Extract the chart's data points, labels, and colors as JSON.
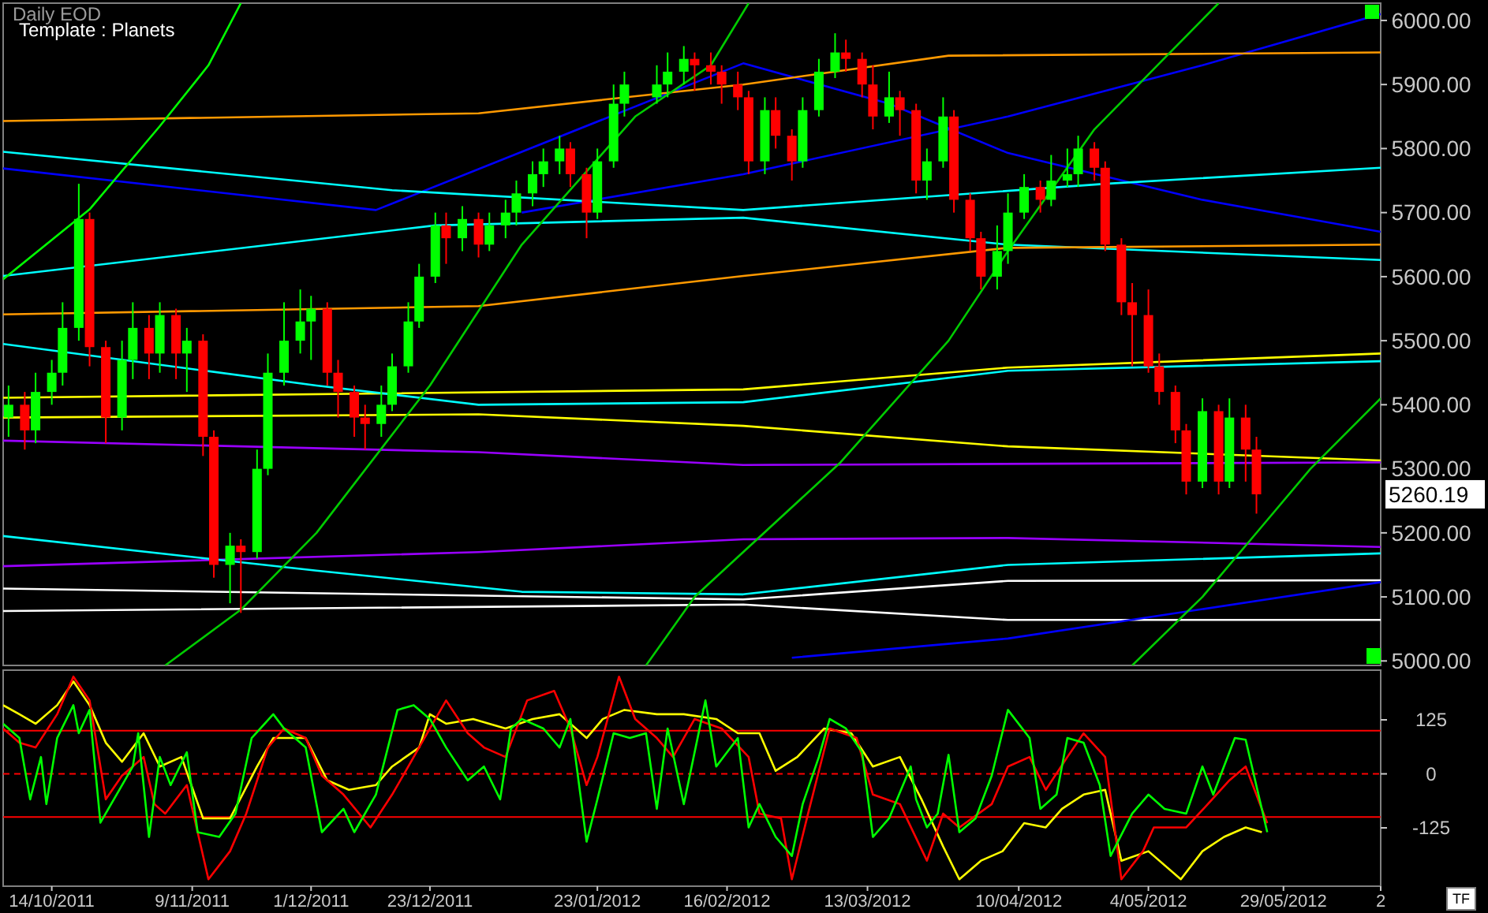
{
  "chart_data": [
    {
      "type": "candlestick",
      "title": "Daily EOD",
      "subtitle": "Template : Planets",
      "xlim": [
        "2011-10-05",
        "2012-06-16"
      ],
      "ylim": [
        4993,
        6027
      ],
      "tick_labels": "y",
      "yticks": [
        {
          "value": 5000,
          "label": "5000.00"
        },
        {
          "value": 5100,
          "label": "5100.00"
        },
        {
          "value": 5200,
          "label": "5200.00"
        },
        {
          "value": 5300,
          "label": "5300.00"
        },
        {
          "value": 5400,
          "label": "5400.00"
        },
        {
          "value": 5500,
          "label": "5500.00"
        },
        {
          "value": 5600,
          "label": "5600.00"
        },
        {
          "value": 5700,
          "label": "5700.00"
        },
        {
          "value": 5800,
          "label": "5800.00"
        },
        {
          "value": 5900,
          "label": "5900.00"
        },
        {
          "value": 6000,
          "label": "6000.00"
        }
      ],
      "annotations": [
        "5260.19"
      ],
      "series": [
        {
          "type": "line",
          "color": "#00ffff",
          "x": [
            "2011-10-05",
            "2011-12-24",
            "2012-02-19",
            "2012-04-08",
            "2012-06-16"
          ],
          "values": [
            5601,
            5680,
            5692,
            5650,
            5626
          ]
        },
        {
          "type": "line",
          "color": "#0000ff",
          "x": [
            "2012-01-09",
            "2012-02-19",
            "2012-04-08",
            "2012-05-14",
            "2012-06-16"
          ],
          "values": [
            5700,
            5760,
            5850,
            5930,
            6010
          ]
        },
        {
          "type": "line",
          "color": "#0000ff",
          "x": [
            "2011-10-05",
            "2011-12-13",
            "2012-02-19",
            "2012-03-17",
            "2012-04-08",
            "2012-05-14",
            "2012-06-16"
          ],
          "values": [
            5769,
            5704,
            5933,
            5870,
            5793,
            5720,
            5670
          ]
        },
        {
          "type": "line",
          "color": "#00ffff",
          "x": [
            "2011-10-05",
            "2011-12-16",
            "2012-02-19",
            "2012-04-26",
            "2012-06-16"
          ],
          "values": [
            5795,
            5735,
            5704,
            5745,
            5770
          ]
        },
        {
          "type": "line",
          "color": "#ff9900",
          "x": [
            "2011-10-05",
            "2012-01-01",
            "2012-02-19",
            "2012-03-28",
            "2012-06-16"
          ],
          "values": [
            5843,
            5855,
            5900,
            5945,
            5950
          ]
        },
        {
          "type": "line",
          "color": "#ff9900",
          "x": [
            "2011-10-05",
            "2012-01-01",
            "2012-02-19",
            "2012-04-08",
            "2012-06-16"
          ],
          "values": [
            5541,
            5554,
            5601,
            5645,
            5650
          ]
        },
        {
          "type": "line",
          "color": "#ffff00",
          "x": [
            "2011-10-05",
            "2012-02-19",
            "2012-04-08",
            "2012-06-16"
          ],
          "values": [
            5411,
            5424,
            5458,
            5480
          ]
        },
        {
          "type": "line",
          "color": "#00ffff",
          "x": [
            "2011-10-05",
            "2011-12-02",
            "2012-01-01",
            "2012-02-19",
            "2012-04-08",
            "2012-06-16"
          ],
          "values": [
            5495,
            5430,
            5400,
            5404,
            5453,
            5468
          ]
        },
        {
          "type": "line",
          "color": "#ffff00",
          "x": [
            "2011-10-05",
            "2012-01-01",
            "2012-02-19",
            "2012-04-08",
            "2012-06-16"
          ],
          "values": [
            5380,
            5385,
            5367,
            5335,
            5313
          ]
        },
        {
          "type": "line",
          "color": "#9900ff",
          "x": [
            "2011-10-05",
            "2012-01-01",
            "2012-02-19",
            "2012-06-16"
          ],
          "values": [
            5344,
            5326,
            5306,
            5310
          ]
        },
        {
          "type": "line",
          "color": "#9900ff",
          "x": [
            "2011-10-05",
            "2012-01-01",
            "2012-02-19",
            "2012-04-08",
            "2012-06-16"
          ],
          "values": [
            5148,
            5170,
            5190,
            5192,
            5178
          ]
        },
        {
          "type": "line",
          "color": "#00ffff",
          "x": [
            "2011-10-05",
            "2011-12-02",
            "2012-01-09",
            "2012-02-19",
            "2012-04-08",
            "2012-06-16"
          ],
          "values": [
            5195,
            5141,
            5108,
            5104,
            5150,
            5168
          ]
        },
        {
          "type": "line",
          "color": "#ffffff",
          "x": [
            "2011-10-05",
            "2012-02-19",
            "2012-04-08",
            "2012-06-16"
          ],
          "values": [
            5113,
            5096,
            5125,
            5126
          ]
        },
        {
          "type": "line",
          "color": "#ffffff",
          "x": [
            "2011-10-05",
            "2012-02-19",
            "2012-04-08",
            "2012-06-16"
          ],
          "values": [
            5078,
            5088,
            5064,
            5064
          ]
        },
        {
          "type": "line",
          "color": "#0000ff",
          "x": [
            "2012-02-28",
            "2012-04-08",
            "2012-06-16"
          ],
          "values": [
            5005,
            5035,
            5123
          ]
        },
        {
          "type": "line",
          "color": "#00ff00",
          "x": [
            "2011-10-05",
            "2011-10-21",
            "2011-11-03",
            "2011-11-12",
            "2011-11-18"
          ],
          "values": [
            5596,
            5705,
            5835,
            5930,
            6027
          ]
        },
        {
          "type": "line",
          "color": "#00cc00",
          "x": [
            "2011-11-04",
            "2011-11-18",
            "2011-12-02",
            "2011-12-23",
            "2012-01-09",
            "2012-01-30",
            "2012-02-13",
            "2012-02-20"
          ],
          "values": [
            4993,
            5080,
            5200,
            5430,
            5650,
            5850,
            5930,
            6027
          ]
        },
        {
          "type": "line",
          "color": "#00cc00",
          "x": [
            "2012-02-01",
            "2012-02-10",
            "2012-03-08",
            "2012-03-28",
            "2012-04-08",
            "2012-04-24",
            "2012-05-08",
            "2012-05-17"
          ],
          "values": [
            4993,
            5100,
            5310,
            5500,
            5640,
            5830,
            5950,
            6027
          ]
        },
        {
          "type": "line",
          "color": "#00cc00",
          "x": [
            "2012-05-01",
            "2012-05-14",
            "2012-05-25",
            "2012-06-03",
            "2012-06-16"
          ],
          "values": [
            4993,
            5100,
            5210,
            5300,
            5410
          ]
        },
        {
          "color": "#00ff00",
          "x": [
            "2011-10-06",
            "2011-10-11",
            "2011-10-14",
            "2011-10-16",
            "2011-10-19",
            "2011-10-27",
            "2011-10-29",
            "2011-11-03",
            "2011-11-08",
            "2011-11-16",
            "2011-11-21",
            "2011-11-23",
            "2011-11-26",
            "2011-11-29",
            "2011-12-01",
            "2011-12-14",
            "2011-12-16",
            "2011-12-19",
            "2011-12-21",
            "2011-12-24",
            "2011-12-29",
            "2012-01-03",
            "2012-01-06",
            "2012-01-08",
            "2012-01-11",
            "2012-01-13",
            "2012-01-16",
            "2012-01-23",
            "2012-01-26",
            "2012-01-28",
            "2012-02-03",
            "2012-02-05",
            "2012-02-08",
            "2012-02-23",
            "2012-03-01",
            "2012-03-04",
            "2012-03-07",
            "2012-03-17",
            "2012-03-24",
            "2012-03-27",
            "2012-04-06",
            "2012-04-08",
            "2012-04-11",
            "2012-04-16",
            "2012-04-19",
            "2012-04-21",
            "2012-05-14",
            "2012-05-19"
          ],
          "ohlc": [
            [
              5380,
              5430,
              5350,
              5400
            ],
            [
              5360,
              5450,
              5340,
              5420
            ],
            [
              5420,
              5470,
              5400,
              5450
            ],
            [
              5450,
              5560,
              5430,
              5520
            ],
            [
              5520,
              5745,
              5500,
              5690
            ],
            [
              5380,
              5500,
              5360,
              5470
            ],
            [
              5470,
              5560,
              5440,
              5520
            ],
            [
              5480,
              5560,
              5450,
              5540
            ],
            [
              5480,
              5520,
              5420,
              5500
            ],
            [
              5150,
              5200,
              5090,
              5180
            ],
            [
              5170,
              5330,
              5160,
              5300
            ],
            [
              5300,
              5480,
              5290,
              5450
            ],
            [
              5450,
              5560,
              5430,
              5500
            ],
            [
              5500,
              5580,
              5480,
              5530
            ],
            [
              5530,
              5570,
              5470,
              5550
            ],
            [
              5370,
              5430,
              5350,
              5400
            ],
            [
              5400,
              5480,
              5390,
              5460
            ],
            [
              5460,
              5560,
              5450,
              5530
            ],
            [
              5530,
              5620,
              5520,
              5600
            ],
            [
              5600,
              5700,
              5590,
              5680
            ],
            [
              5660,
              5710,
              5640,
              5690
            ],
            [
              5650,
              5700,
              5640,
              5680
            ],
            [
              5680,
              5720,
              5660,
              5700
            ],
            [
              5700,
              5750,
              5680,
              5730
            ],
            [
              5730,
              5780,
              5710,
              5760
            ],
            [
              5760,
              5800,
              5740,
              5780
            ],
            [
              5780,
              5820,
              5760,
              5800
            ],
            [
              5700,
              5800,
              5690,
              5780
            ],
            [
              5780,
              5900,
              5770,
              5870
            ],
            [
              5870,
              5920,
              5850,
              5900
            ],
            [
              5880,
              5930,
              5870,
              5900
            ],
            [
              5900,
              5950,
              5880,
              5920
            ],
            [
              5920,
              5960,
              5900,
              5940
            ],
            [
              5780,
              5880,
              5760,
              5860
            ],
            [
              5780,
              5880,
              5770,
              5860
            ],
            [
              5860,
              5940,
              5850,
              5920
            ],
            [
              5920,
              5980,
              5910,
              5950
            ],
            [
              5850,
              5920,
              5840,
              5880
            ],
            [
              5750,
              5800,
              5720,
              5780
            ],
            [
              5780,
              5880,
              5770,
              5850
            ],
            [
              5600,
              5680,
              5580,
              5640
            ],
            [
              5640,
              5730,
              5620,
              5700
            ],
            [
              5700,
              5760,
              5690,
              5740
            ],
            [
              5720,
              5790,
              5710,
              5750
            ],
            [
              5750,
              5800,
              5740,
              5760
            ],
            [
              5760,
              5820,
              5740,
              5800
            ],
            [
              5280,
              5410,
              5270,
              5390
            ],
            [
              5280,
              5410,
              5270,
              5380
            ]
          ]
        },
        {
          "color": "#ff0000",
          "x": [
            "2011-10-09",
            "2011-10-21",
            "2011-10-24",
            "2011-11-01",
            "2011-11-06",
            "2011-11-11",
            "2011-11-13",
            "2011-11-18",
            "2011-12-04",
            "2011-12-06",
            "2011-12-09",
            "2011-12-11",
            "2011-12-26",
            "2012-01-01",
            "2012-01-18",
            "2012-01-21",
            "2012-02-10",
            "2012-02-13",
            "2012-02-15",
            "2012-02-18",
            "2012-02-20",
            "2012-02-25",
            "2012-02-28",
            "2012-03-09",
            "2012-03-12",
            "2012-03-14",
            "2012-03-19",
            "2012-03-22",
            "2012-03-29",
            "2012-04-01",
            "2012-04-03",
            "2012-04-14",
            "2012-04-24",
            "2012-04-26",
            "2012-04-29",
            "2012-05-01",
            "2012-05-04",
            "2012-05-06",
            "2012-05-09",
            "2012-05-11",
            "2012-05-17",
            "2012-05-22",
            "2012-05-24"
          ],
          "ohlc": [
            [
              5400,
              5420,
              5330,
              5360
            ],
            [
              5690,
              5700,
              5460,
              5490
            ],
            [
              5490,
              5500,
              5340,
              5380
            ],
            [
              5520,
              5540,
              5440,
              5480
            ],
            [
              5540,
              5550,
              5440,
              5480
            ],
            [
              5500,
              5510,
              5320,
              5350
            ],
            [
              5350,
              5360,
              5130,
              5150
            ],
            [
              5180,
              5190,
              5075,
              5170
            ],
            [
              5550,
              5560,
              5430,
              5450
            ],
            [
              5450,
              5470,
              5380,
              5420
            ],
            [
              5420,
              5430,
              5350,
              5380
            ],
            [
              5380,
              5400,
              5330,
              5370
            ],
            [
              5680,
              5700,
              5620,
              5660
            ],
            [
              5690,
              5700,
              5630,
              5650
            ],
            [
              5800,
              5810,
              5740,
              5760
            ],
            [
              5760,
              5770,
              5660,
              5700
            ],
            [
              5940,
              5950,
              5890,
              5930
            ],
            [
              5930,
              5950,
              5900,
              5920
            ],
            [
              5920,
              5930,
              5870,
              5900
            ],
            [
              5900,
              5920,
              5860,
              5880
            ],
            [
              5880,
              5890,
              5760,
              5780
            ],
            [
              5860,
              5880,
              5800,
              5820
            ],
            [
              5820,
              5830,
              5750,
              5780
            ],
            [
              5950,
              5970,
              5920,
              5940
            ],
            [
              5940,
              5950,
              5880,
              5900
            ],
            [
              5900,
              5930,
              5830,
              5850
            ],
            [
              5880,
              5890,
              5820,
              5860
            ],
            [
              5860,
              5870,
              5730,
              5750
            ],
            [
              5850,
              5860,
              5700,
              5720
            ],
            [
              5720,
              5730,
              5640,
              5660
            ],
            [
              5660,
              5670,
              5580,
              5600
            ],
            [
              5740,
              5750,
              5700,
              5720
            ],
            [
              5800,
              5810,
              5750,
              5770
            ],
            [
              5770,
              5780,
              5640,
              5650
            ],
            [
              5650,
              5660,
              5540,
              5560
            ],
            [
              5560,
              5590,
              5460,
              5540
            ],
            [
              5540,
              5580,
              5450,
              5460
            ],
            [
              5460,
              5480,
              5400,
              5420
            ],
            [
              5420,
              5430,
              5340,
              5360
            ],
            [
              5360,
              5370,
              5260,
              5280
            ],
            [
              5390,
              5400,
              5260,
              5280
            ],
            [
              5380,
              5400,
              5280,
              5330
            ],
            [
              5330,
              5350,
              5230,
              5260.19
            ]
          ]
        }
      ]
    },
    {
      "type": "line",
      "xlim": [
        "2011-10-05",
        "2012-06-16"
      ],
      "ylim": [
        -260,
        240
      ],
      "yticks": [
        125,
        0,
        -125
      ],
      "xticks": [
        {
          "value": "2011-10-14",
          "label": "14/10/2011"
        },
        {
          "value": "2011-11-09",
          "label": "9/11/2011"
        },
        {
          "value": "2011-12-01",
          "label": "1/12/2011"
        },
        {
          "value": "2011-12-23",
          "label": "23/12/2011"
        },
        {
          "value": "2012-01-23",
          "label": "23/01/2012"
        },
        {
          "value": "2012-02-16",
          "label": "16/02/2012"
        },
        {
          "value": "2012-03-13",
          "label": "13/03/2012"
        },
        {
          "value": "2012-04-10",
          "label": "10/04/2012"
        },
        {
          "value": "2012-05-04",
          "label": "4/05/2012"
        },
        {
          "value": "2012-05-29",
          "label": "29/05/2012"
        },
        {
          "value": "2012-06-16",
          "label": "2"
        }
      ],
      "ref_lines": [
        {
          "axis": "y",
          "value": 100,
          "color": "#ff0000",
          "line_style": "solid"
        },
        {
          "axis": "y",
          "value": 0,
          "color": "#ff0000",
          "line_style": "dashed"
        },
        {
          "axis": "y",
          "value": -100,
          "color": "#ff0000",
          "line_style": "solid"
        }
      ],
      "annotations": [
        "TF"
      ],
      "series": [
        {
          "color": "#ffff00",
          "x": [
            "2011-10-05",
            "2011-10-08",
            "2011-10-11",
            "2011-10-15",
            "2011-10-18",
            "2011-10-21",
            "2011-10-24",
            "2011-10-27",
            "2011-10-31",
            "2011-11-03",
            "2011-11-07",
            "2011-11-11",
            "2011-11-16",
            "2011-11-21",
            "2011-11-24",
            "2011-11-30",
            "2011-12-04",
            "2011-12-08",
            "2011-12-13",
            "2011-12-16",
            "2011-12-21",
            "2011-12-23",
            "2011-12-26",
            "2011-12-31",
            "2012-01-06",
            "2012-01-11",
            "2012-01-16",
            "2012-01-21",
            "2012-01-24",
            "2012-01-28",
            "2012-02-03",
            "2012-02-08",
            "2012-02-14",
            "2012-02-18",
            "2012-02-22",
            "2012-02-25",
            "2012-02-29",
            "2012-03-05",
            "2012-03-10",
            "2012-03-14",
            "2012-03-19",
            "2012-03-23",
            "2012-03-27",
            "2012-03-30",
            "2012-04-03",
            "2012-04-07",
            "2012-04-11",
            "2012-04-15",
            "2012-04-18",
            "2012-04-22",
            "2012-04-26",
            "2012-04-29",
            "2012-05-04",
            "2012-05-10",
            "2012-05-14",
            "2012-05-18",
            "2012-05-22",
            "2012-05-25"
          ],
          "values": [
            159,
            138,
            116,
            159,
            214,
            159,
            72,
            28,
            94,
            17,
            39,
            -103,
            -103,
            17,
            83,
            83,
            -15,
            -37,
            -26,
            17,
            61,
            138,
            116,
            127,
            105,
            127,
            138,
            83,
            127,
            148,
            138,
            138,
            127,
            94,
            94,
            7,
            39,
            105,
            94,
            17,
            39,
            -59,
            -168,
            -244,
            -201,
            -179,
            -114,
            -124,
            -81,
            -48,
            -37,
            -201,
            -179,
            -244,
            -179,
            -146,
            -124,
            -135
          ]
        },
        {
          "color": "#ff0000",
          "x": [
            "2011-10-05",
            "2011-10-08",
            "2011-10-11",
            "2011-10-15",
            "2011-10-18",
            "2011-10-21",
            "2011-10-24",
            "2011-10-27",
            "2011-10-31",
            "2011-11-02",
            "2011-11-04",
            "2011-11-08",
            "2011-11-12",
            "2011-11-16",
            "2011-11-19",
            "2011-11-23",
            "2011-11-26",
            "2011-11-30",
            "2011-12-03",
            "2011-12-07",
            "2011-12-12",
            "2011-12-16",
            "2011-12-19",
            "2011-12-23",
            "2011-12-26",
            "2011-12-30",
            "2012-01-02",
            "2012-01-06",
            "2012-01-10",
            "2012-01-15",
            "2012-01-18",
            "2012-01-21",
            "2012-01-23",
            "2012-01-27",
            "2012-01-30",
            "2012-02-03",
            "2012-02-06",
            "2012-02-10",
            "2012-02-15",
            "2012-02-20",
            "2012-02-22",
            "2012-02-26",
            "2012-02-28",
            "2012-03-02",
            "2012-03-06",
            "2012-03-11",
            "2012-03-14",
            "2012-03-19",
            "2012-03-24",
            "2012-03-27",
            "2012-03-30",
            "2012-04-05",
            "2012-04-08",
            "2012-04-12",
            "2012-04-15",
            "2012-04-19",
            "2012-04-22",
            "2012-04-26",
            "2012-04-29",
            "2012-05-03",
            "2012-05-05",
            "2012-05-11",
            "2012-05-15",
            "2012-05-19",
            "2012-05-22",
            "2012-05-26"
          ],
          "values": [
            105,
            72,
            61,
            138,
            225,
            170,
            -59,
            -4,
            39,
            -70,
            -92,
            -26,
            -244,
            -179,
            -92,
            61,
            105,
            83,
            -4,
            -48,
            -124,
            -48,
            17,
            105,
            170,
            94,
            61,
            39,
            170,
            192,
            105,
            -26,
            39,
            225,
            127,
            83,
            39,
            127,
            105,
            39,
            -92,
            -103,
            -244,
            -92,
            105,
            83,
            -48,
            -70,
            -201,
            -92,
            -124,
            -70,
            17,
            39,
            -37,
            39,
            94,
            39,
            -244,
            -179,
            -124,
            -124,
            -70,
            -15,
            17,
            -114
          ]
        },
        {
          "color": "#00ff00",
          "x": [
            "2011-10-05",
            "2011-10-08",
            "2011-10-10",
            "2011-10-12",
            "2011-10-13",
            "2011-10-15",
            "2011-10-18",
            "2011-10-19",
            "2011-10-21",
            "2011-10-23",
            "2011-10-26",
            "2011-10-29",
            "2011-10-30",
            "2011-11-01",
            "2011-11-03",
            "2011-11-05",
            "2011-11-08",
            "2011-11-10",
            "2011-11-14",
            "2011-11-17",
            "2011-11-20",
            "2011-11-24",
            "2011-11-26",
            "2011-11-30",
            "2011-12-03",
            "2011-12-07",
            "2011-12-09",
            "2011-12-13",
            "2011-12-17",
            "2011-12-20",
            "2011-12-23",
            "2011-12-26",
            "2011-12-30",
            "2012-01-02",
            "2012-01-05",
            "2012-01-07",
            "2012-01-09",
            "2012-01-13",
            "2012-01-16",
            "2012-01-18",
            "2012-01-21",
            "2012-01-23",
            "2012-01-26",
            "2012-01-29",
            "2012-02-01",
            "2012-02-03",
            "2012-02-05",
            "2012-02-08",
            "2012-02-12",
            "2012-02-14",
            "2012-02-18",
            "2012-02-20",
            "2012-02-22",
            "2012-02-25",
            "2012-02-28",
            "2012-03-01",
            "2012-03-04",
            "2012-03-06",
            "2012-03-09",
            "2012-03-12",
            "2012-03-14",
            "2012-03-17",
            "2012-03-21",
            "2012-03-22",
            "2012-03-24",
            "2012-03-26",
            "2012-03-28",
            "2012-03-30",
            "2012-04-02",
            "2012-04-05",
            "2012-04-08",
            "2012-04-12",
            "2012-04-14",
            "2012-04-17",
            "2012-04-19",
            "2012-04-22",
            "2012-04-25",
            "2012-04-27",
            "2012-05-01",
            "2012-05-04",
            "2012-05-07",
            "2012-05-11",
            "2012-05-14",
            "2012-05-16",
            "2012-05-20",
            "2012-05-22",
            "2012-05-26"
          ],
          "values": [
            116,
            83,
            -59,
            39,
            -70,
            83,
            159,
            94,
            148,
            -113,
            -48,
            17,
            94,
            -146,
            39,
            -26,
            50,
            -135,
            -146,
            -92,
            83,
            138,
            105,
            61,
            -135,
            -81,
            -135,
            -48,
            148,
            159,
            127,
            61,
            -15,
            17,
            -59,
            105,
            127,
            105,
            61,
            127,
            -157,
            -59,
            94,
            83,
            94,
            -81,
            105,
            -70,
            170,
            17,
            83,
            -124,
            -70,
            -146,
            -190,
            -70,
            39,
            127,
            105,
            50,
            -146,
            -103,
            17,
            -59,
            -124,
            -92,
            44,
            -135,
            -103,
            -4,
            148,
            83,
            -81,
            -48,
            83,
            72,
            -26,
            -190,
            -92,
            -48,
            -81,
            -92,
            17,
            -48,
            83,
            79,
            -135
          ]
        }
      ]
    }
  ]
}
